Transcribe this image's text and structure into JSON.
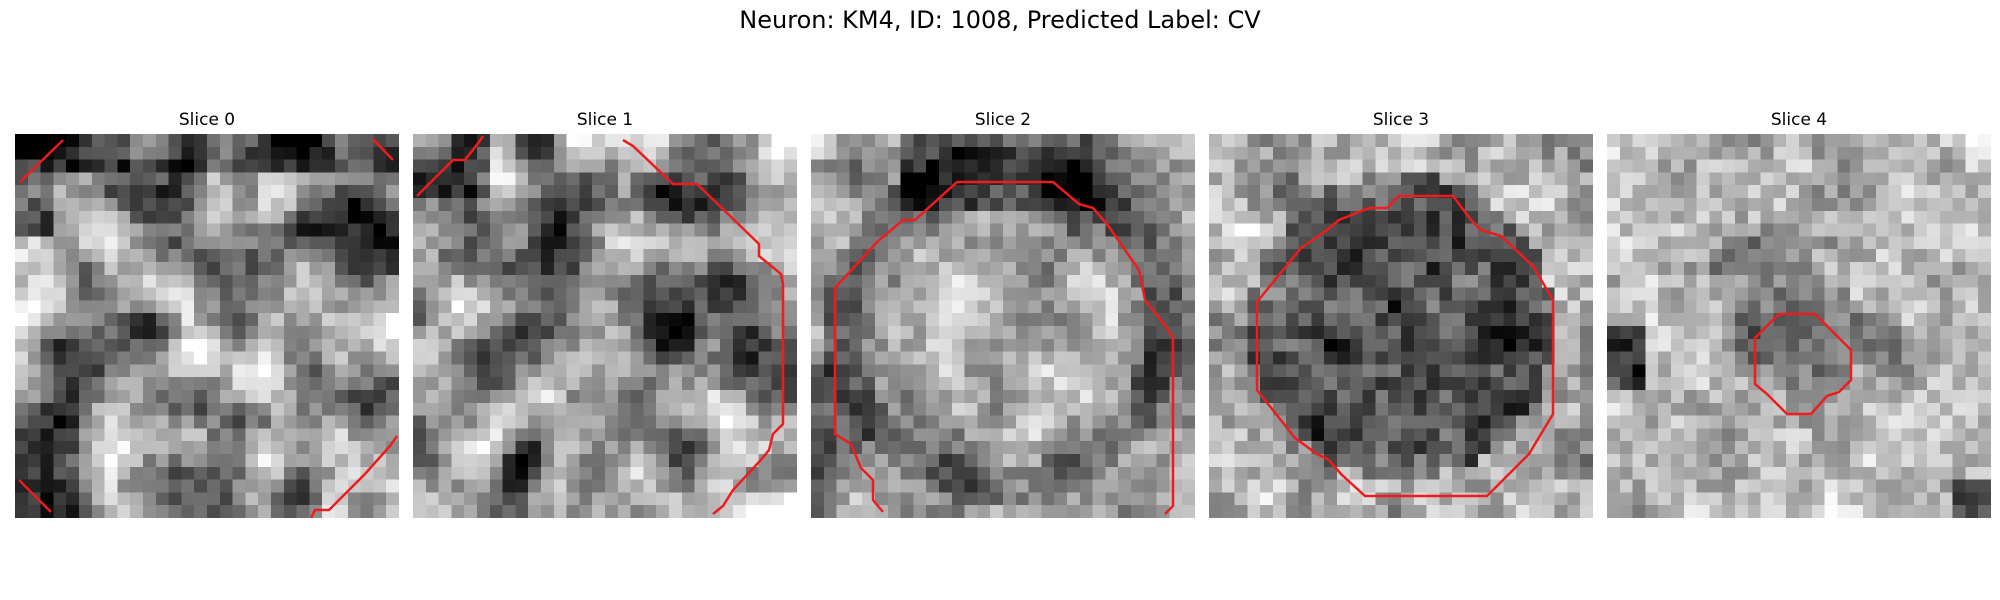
{
  "figure": {
    "title": "Neuron: KM4, ID: 1008, Predicted Label: CV"
  },
  "panels": [
    {
      "title": "Slice 0",
      "seed": 11,
      "pattern": "cloudy"
    },
    {
      "title": "Slice 1",
      "seed": 23,
      "pattern": "cloudy"
    },
    {
      "title": "Slice 2",
      "seed": 37,
      "pattern": "ring-bright-center"
    },
    {
      "title": "Slice 3",
      "seed": 41,
      "pattern": "dark-disk"
    },
    {
      "title": "Slice 4",
      "seed": 53,
      "pattern": "bright-small-dark-blob"
    }
  ],
  "style": {
    "contour_color": "#ee1c1c",
    "colormap": "gray"
  }
}
